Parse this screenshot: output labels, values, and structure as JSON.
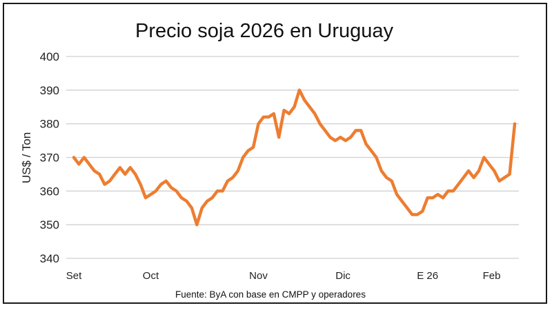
{
  "chart_data": {
    "type": "line",
    "title": "Precio soja 2026 en Uruguay",
    "ylabel": "US$ / Ton",
    "xlabel": "",
    "ylim": [
      340,
      400
    ],
    "yticks": [
      340,
      350,
      360,
      370,
      380,
      390,
      400
    ],
    "grid": true,
    "line_color": "#ED7D31",
    "xtick_labels": [
      {
        "label": "Set",
        "index": 0
      },
      {
        "label": "Oct",
        "index": 15
      },
      {
        "label": "Nov",
        "index": 36
      },
      {
        "label": "Dic",
        "index": 52.5
      },
      {
        "label": "E 26",
        "index": 69
      },
      {
        "label": "Feb",
        "index": 81.5
      }
    ],
    "values": [
      370,
      368,
      370,
      368,
      366,
      365,
      362,
      363,
      365,
      367,
      365,
      367,
      365,
      362,
      358,
      359,
      360,
      362,
      363,
      361,
      360,
      358,
      357,
      355,
      350,
      355,
      357,
      358,
      360,
      360,
      363,
      364,
      366,
      370,
      372,
      373,
      380,
      382,
      382,
      383,
      376,
      384,
      383,
      385,
      390,
      387,
      385,
      383,
      380,
      378,
      376,
      375,
      376,
      375,
      376,
      378,
      378,
      374,
      372,
      370,
      366,
      364,
      363,
      359,
      357,
      355,
      353,
      353,
      354,
      358,
      358,
      359,
      358,
      360,
      360,
      362,
      364,
      366,
      364,
      366,
      370,
      368,
      366,
      363,
      364,
      365,
      380
    ],
    "source": "Fuente: ByA con base en CMPP y operadores"
  }
}
